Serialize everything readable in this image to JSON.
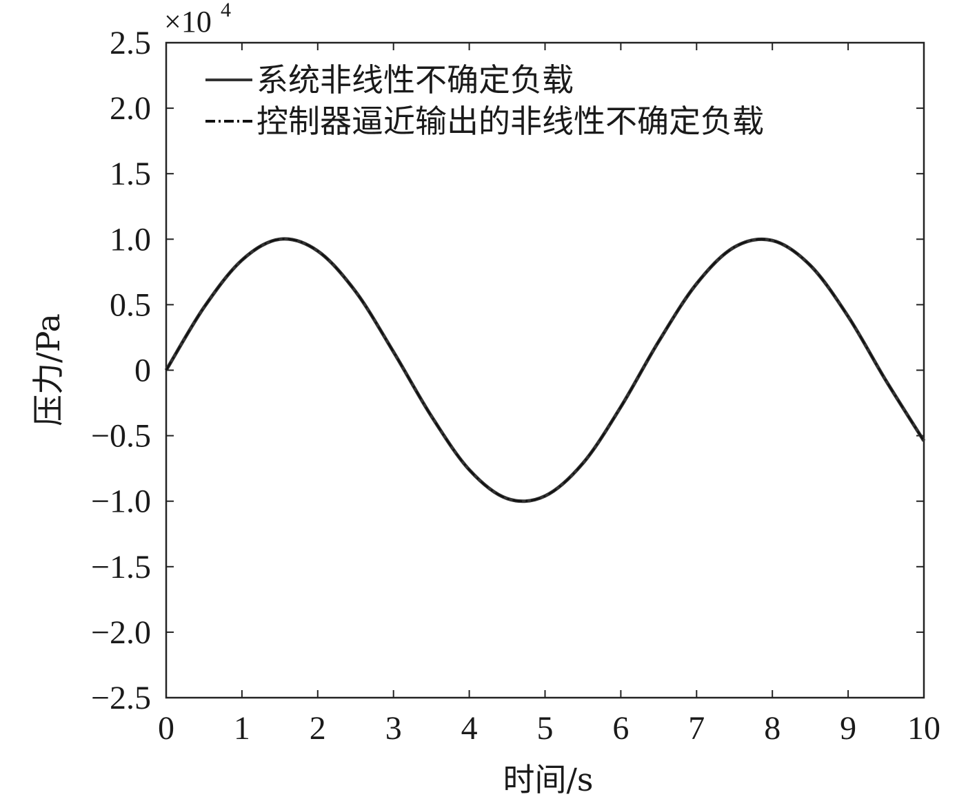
{
  "chart_data": {
    "type": "line",
    "title": "",
    "xlabel": "时间/s",
    "ylabel": "压力/Pa",
    "y_scale_multiplier": "×10",
    "y_scale_exponent": "4",
    "xlim": [
      0,
      10
    ],
    "ylim": [
      -2.5,
      2.5
    ],
    "x_ticks": [
      0,
      1,
      2,
      3,
      4,
      5,
      6,
      7,
      8,
      9,
      10
    ],
    "x_tick_labels": [
      "0",
      "1",
      "2",
      "3",
      "4",
      "5",
      "6",
      "7",
      "8",
      "9",
      "10"
    ],
    "y_ticks": [
      2.5,
      2.0,
      1.5,
      1.0,
      0.5,
      0,
      -0.5,
      -1.0,
      -1.5,
      -2.0,
      -2.5
    ],
    "y_tick_labels": [
      "2.5",
      "2.0",
      "1.5",
      "1.0",
      "0.5",
      "0",
      "−0.5",
      "−1.0",
      "−1.5",
      "−2.0",
      "−2.5"
    ],
    "grid": false,
    "legend_position": "top-left",
    "x": [
      0,
      0.5,
      1.0,
      1.5,
      2.0,
      2.5,
      3.0,
      3.5,
      4.0,
      4.5,
      5.0,
      5.5,
      6.0,
      6.5,
      7.0,
      7.5,
      8.0,
      8.5,
      9.0,
      9.5,
      10.0
    ],
    "series": [
      {
        "name": "系统非线性不确定负载",
        "style": "solid",
        "color": "#333333",
        "values": [
          0,
          0.48,
          0.84,
          1.0,
          0.91,
          0.6,
          0.14,
          -0.35,
          -0.76,
          -0.98,
          -0.96,
          -0.71,
          -0.28,
          0.22,
          0.66,
          0.94,
          0.99,
          0.8,
          0.41,
          -0.08,
          -0.54
        ]
      },
      {
        "name": "控制器逼近输出的非线性不确定负载",
        "style": "dash-dot",
        "color": "#111111",
        "values": [
          0,
          0.48,
          0.84,
          1.0,
          0.91,
          0.6,
          0.14,
          -0.35,
          -0.76,
          -0.98,
          -0.96,
          -0.71,
          -0.28,
          0.22,
          0.66,
          0.94,
          0.99,
          0.8,
          0.41,
          -0.08,
          -0.54
        ]
      }
    ]
  }
}
